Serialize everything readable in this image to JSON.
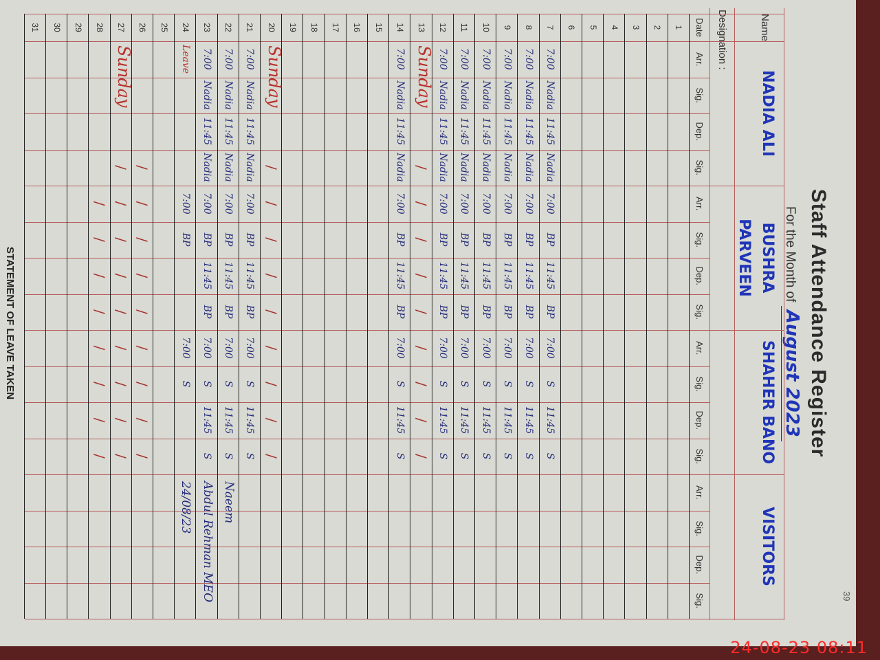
{
  "register": {
    "title": "Staff Attendance Register",
    "subtitle_prefix": "For the Month of",
    "month": "August 2023",
    "page_number": "39",
    "name_label": "Name",
    "designation_label": "Designation :",
    "footer": "STATEMENT OF LEAVE TAKEN"
  },
  "staff": [
    {
      "name": "Nadia Ali"
    },
    {
      "name": "Bushra Parveen"
    },
    {
      "name": "Shaher Bano"
    },
    {
      "name": "Visitors"
    }
  ],
  "columns": [
    "Date",
    "Arr.",
    "Sig.",
    "Dep.",
    "Sig.",
    "Arr.",
    "Sig.",
    "Dep.",
    "Sig.",
    "Arr.",
    "Sig.",
    "Dep.",
    "Sig.",
    "Arr.",
    "Sig.",
    "Dep.",
    "Sig."
  ],
  "rows": [
    {
      "date": "1",
      "cells": []
    },
    {
      "date": "2",
      "cells": []
    },
    {
      "date": "3",
      "cells": []
    },
    {
      "date": "4",
      "cells": []
    },
    {
      "date": "5",
      "cells": []
    },
    {
      "date": "6",
      "cells": []
    },
    {
      "date": "7",
      "cells": [
        "7:00",
        "Nadia",
        "11:45",
        "Nadia",
        "7:00",
        "BP",
        "11:45",
        "BP",
        "7:00",
        "S",
        "11:45",
        "S"
      ]
    },
    {
      "date": "8",
      "cells": [
        "7:00",
        "Nadia",
        "11:45",
        "Nadia",
        "7:00",
        "BP",
        "11:45",
        "BP",
        "7:00",
        "S",
        "11:45",
        "S"
      ]
    },
    {
      "date": "9",
      "cells": [
        "7:00",
        "Nadia",
        "11:45",
        "Nadia",
        "7:00",
        "BP",
        "11:45",
        "BP",
        "7:00",
        "S",
        "11:45",
        "S"
      ]
    },
    {
      "date": "10",
      "cells": [
        "7:00",
        "Nadia",
        "11:45",
        "Nadia",
        "7:00",
        "BP",
        "11:45",
        "BP",
        "7:00",
        "S",
        "11:45",
        "S"
      ]
    },
    {
      "date": "11",
      "cells": [
        "7:00",
        "Nadia",
        "11:45",
        "Nadia",
        "7:00",
        "BP",
        "11:45",
        "BP",
        "7:00",
        "S",
        "11:45",
        "S"
      ]
    },
    {
      "date": "12",
      "cells": [
        "7:00",
        "Nadia",
        "11:45",
        "Nadia",
        "7:00",
        "BP",
        "11:45",
        "BP",
        "7:00",
        "S",
        "11:45",
        "S"
      ]
    },
    {
      "date": "13",
      "note": "Sunday",
      "cells": [
        "",
        "",
        "",
        "/",
        "/",
        "/",
        "/",
        "/",
        "/",
        "/",
        "/",
        "/"
      ]
    },
    {
      "date": "14",
      "cells": [
        "7:00",
        "Nadia",
        "11:45",
        "Nadia",
        "7:00",
        "BP",
        "11:45",
        "BP",
        "7:00",
        "S",
        "11:45",
        "S"
      ]
    },
    {
      "date": "15",
      "cells": []
    },
    {
      "date": "16",
      "cells": []
    },
    {
      "date": "17",
      "cells": []
    },
    {
      "date": "18",
      "cells": []
    },
    {
      "date": "19",
      "cells": []
    },
    {
      "date": "20",
      "note": "Sunday",
      "cells": [
        "",
        "",
        "",
        "/",
        "/",
        "/",
        "/",
        "/",
        "/",
        "/",
        "/",
        "/"
      ]
    },
    {
      "date": "21",
      "cells": [
        "7:00",
        "Nadia",
        "11:45",
        "Nadia",
        "7:00",
        "BP",
        "11:45",
        "BP",
        "7:00",
        "S",
        "11:45",
        "S"
      ]
    },
    {
      "date": "22",
      "cells": [
        "7:00",
        "Nadia",
        "11:45",
        "Nadia",
        "7:00",
        "BP",
        "11:45",
        "BP",
        "7:00",
        "S",
        "11:45",
        "S"
      ]
    },
    {
      "date": "23",
      "cells": [
        "7:00",
        "Nadia",
        "11:45",
        "Nadia",
        "7:00",
        "BP",
        "11:45",
        "BP",
        "7:00",
        "S",
        "11:45",
        "S"
      ]
    },
    {
      "date": "24",
      "cells": [
        "Leave",
        "",
        "",
        "",
        "7:00",
        "BP",
        "",
        "",
        "7:00",
        "S",
        "",
        ""
      ]
    },
    {
      "date": "25",
      "cells": []
    },
    {
      "date": "26",
      "cells": [
        "",
        "",
        "",
        "/",
        "/",
        "/",
        "/",
        "/",
        "/",
        "/",
        "/",
        "/"
      ]
    },
    {
      "date": "27",
      "note": "Sunday",
      "cells": [
        "",
        "",
        "",
        "/",
        "/",
        "/",
        "/",
        "/",
        "/",
        "/",
        "/",
        "/"
      ]
    },
    {
      "date": "28",
      "cells": [
        "",
        "",
        "",
        "",
        "/",
        "/",
        "/",
        "/",
        "/",
        "/",
        "/",
        "/"
      ]
    },
    {
      "date": "29",
      "cells": []
    },
    {
      "date": "30",
      "cells": []
    },
    {
      "date": "31",
      "cells": []
    }
  ],
  "visitor_entries": [
    {
      "date": "22",
      "signature": "Naeem"
    },
    {
      "date": "23",
      "signature": "Abdul Rehman MEO"
    },
    {
      "date": "24",
      "signature": "24/08/23"
    }
  ],
  "photo_timestamp": "24-08-23  08:11",
  "colors": {
    "ink_blue": "#232a7a",
    "name_blue": "#2035b8",
    "ink_red": "#b8322d",
    "ruling_red": "#b85c5c",
    "paper": "#d8dad3",
    "timestamp": "#ff2a2a"
  }
}
